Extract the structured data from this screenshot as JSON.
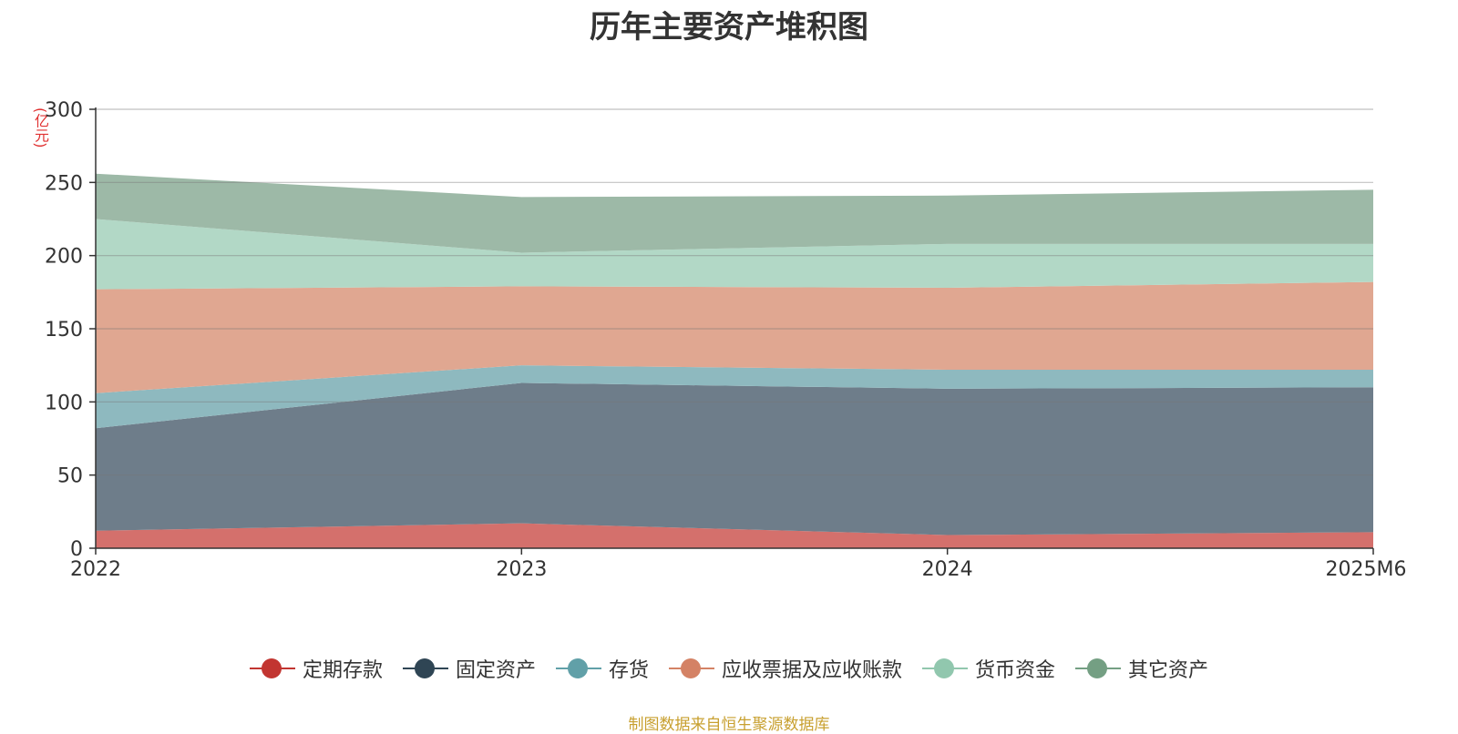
{
  "title": "历年主要资产堆积图",
  "unit_label": "(亿元)",
  "source": "制图数据来自恒生聚源数据库",
  "chart_data": {
    "type": "area",
    "stacked": true,
    "title": "历年主要资产堆积图",
    "ylabel": "(亿元)",
    "categories": [
      "2022",
      "2023",
      "2024",
      "2025M6"
    ],
    "y_ticks": [
      0,
      50,
      100,
      150,
      200,
      250,
      300
    ],
    "ylim": [
      0,
      300
    ],
    "grid": true,
    "legend_position": "bottom",
    "series": [
      {
        "name": "定期存款",
        "values": [
          12,
          17,
          9,
          11
        ],
        "color": "#c23531",
        "fill": "#d4706c"
      },
      {
        "name": "固定资产",
        "values": [
          70,
          96,
          100,
          99
        ],
        "color": "#2f4554",
        "fill": "#6e7d8a"
      },
      {
        "name": "存货",
        "values": [
          24,
          12,
          13,
          12
        ],
        "color": "#61a0a8",
        "fill": "#8eb9bf"
      },
      {
        "name": "应收票据及应收账款",
        "values": [
          71,
          54,
          56,
          60
        ],
        "color": "#d48265",
        "fill": "#e0a791"
      },
      {
        "name": "货币资金",
        "values": [
          48,
          23,
          30,
          26
        ],
        "color": "#91c7ae",
        "fill": "#b2d8c6"
      },
      {
        "name": "其它资产",
        "values": [
          31,
          38,
          33,
          37
        ],
        "color": "#749f83",
        "fill": "#9db9a7"
      }
    ]
  }
}
